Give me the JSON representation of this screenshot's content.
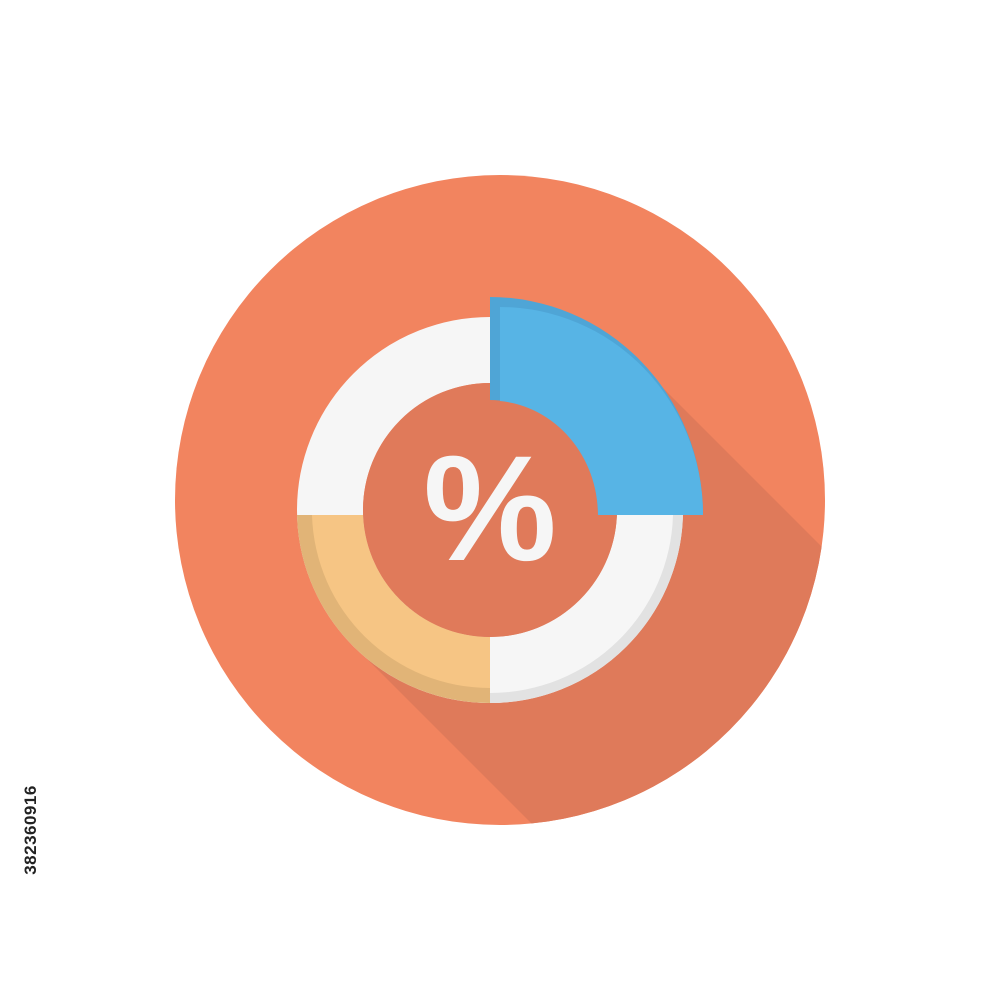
{
  "icon": {
    "symbol": "%",
    "semantic": "percent-donut-chart-icon",
    "colors": {
      "background_circle": "#f2845f",
      "long_shadow": "#df7a5a",
      "inner_circle": "#e07a5a",
      "ring": "#f6f6f6",
      "ring_shade": "#e2e2e2",
      "highlight_segment": "#57b4e5",
      "highlight_shade": "#4fa5d6",
      "yellow_segment": "#f6c584",
      "yellow_shade": "#e1b477",
      "symbol": "#f6f6f6"
    }
  },
  "watermark": {
    "stock_id": "382360916"
  }
}
